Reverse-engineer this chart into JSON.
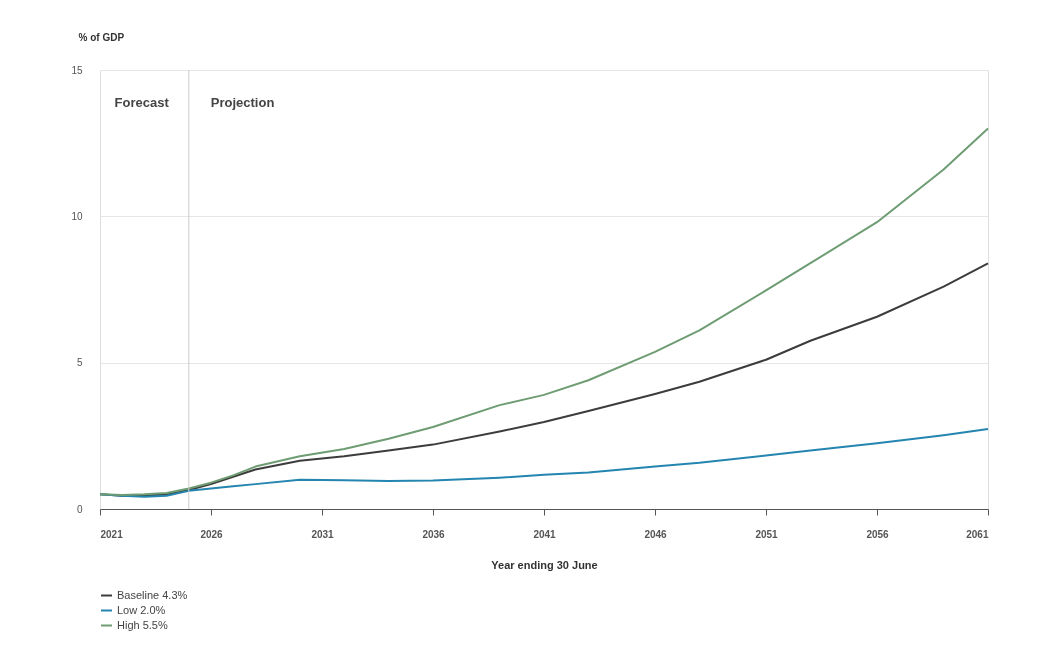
{
  "chart_data": {
    "type": "line",
    "ylabel": "% of GDP",
    "xlabel": "Year ending 30 June",
    "x": [
      2021,
      2022,
      2023,
      2024,
      2025,
      2026,
      2027,
      2028,
      2030,
      2032,
      2034,
      2036,
      2039,
      2041,
      2043,
      2046,
      2048,
      2051,
      2053,
      2056,
      2059,
      2061
    ],
    "series": [
      {
        "name": "Baseline 4.3%",
        "color": "#3c3c3c",
        "values": [
          0.5,
          0.45,
          0.45,
          0.5,
          0.65,
          0.85,
          1.1,
          1.35,
          1.65,
          1.8,
          2.0,
          2.2,
          2.65,
          2.97,
          3.35,
          3.93,
          4.35,
          5.1,
          5.75,
          6.57,
          7.6,
          8.39
        ]
      },
      {
        "name": "Low 2.0%",
        "color": "#2485b0",
        "values": [
          0.5,
          0.45,
          0.42,
          0.45,
          0.62,
          0.7,
          0.78,
          0.85,
          1.0,
          0.98,
          0.96,
          0.97,
          1.07,
          1.17,
          1.25,
          1.45,
          1.58,
          1.83,
          2.0,
          2.25,
          2.52,
          2.73
        ]
      },
      {
        "name": "High 5.5%",
        "color": "#6e9c73",
        "values": [
          0.5,
          0.48,
          0.5,
          0.55,
          0.7,
          0.9,
          1.15,
          1.45,
          1.8,
          2.05,
          2.4,
          2.8,
          3.55,
          3.9,
          4.4,
          5.37,
          6.1,
          7.47,
          8.4,
          9.8,
          11.6,
          13.0
        ]
      }
    ],
    "xlim": [
      2021,
      2061
    ],
    "xticks": [
      2021,
      2026,
      2031,
      2036,
      2041,
      2046,
      2051,
      2056,
      2061
    ],
    "ylim": [
      0,
      15
    ],
    "yticks": [
      0,
      5,
      10,
      15
    ],
    "ref_lines": [
      {
        "axis": "x",
        "value": 2025,
        "label": null,
        "color": "#cccccc"
      }
    ],
    "annotations": [
      "Forecast",
      "Projection"
    ],
    "grid": "y",
    "legend": "bottom left",
    "line_style": "solid",
    "marker": "none"
  }
}
